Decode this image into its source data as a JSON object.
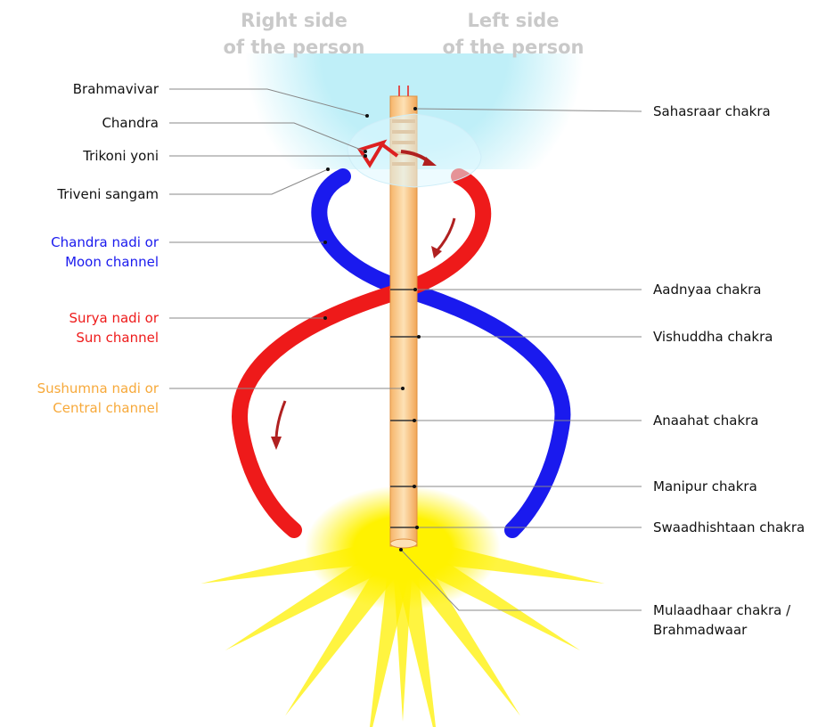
{
  "headers": [
    {
      "lines": [
        "Right side",
        "of the person"
      ]
    },
    {
      "lines": [
        "Left side",
        "of the person"
      ]
    }
  ],
  "left_labels": [
    {
      "lines": [
        "Brahmavivar"
      ]
    },
    {
      "lines": [
        "Chandra"
      ]
    },
    {
      "lines": [
        "Trikoni yoni"
      ]
    },
    {
      "lines": [
        "Triveni sangam"
      ]
    },
    {
      "lines": [
        "Chandra nadi or",
        "Moon channel"
      ]
    },
    {
      "lines": [
        "Surya nadi or",
        "Sun channel"
      ]
    },
    {
      "lines": [
        "Sushumna nadi or",
        "Central channel"
      ]
    }
  ],
  "right_labels": [
    {
      "lines": [
        "Sahasraar chakra"
      ]
    },
    {
      "lines": [
        "Aadnyaa chakra"
      ]
    },
    {
      "lines": [
        "Vishuddha chakra"
      ]
    },
    {
      "lines": [
        "Anaahat chakra"
      ]
    },
    {
      "lines": [
        "Manipur chakra"
      ]
    },
    {
      "lines": [
        "Swaadhishtaan chakra"
      ]
    },
    {
      "lines": [
        "Mulaadhaar chakra /",
        "Brahmadwaar"
      ]
    }
  ]
}
